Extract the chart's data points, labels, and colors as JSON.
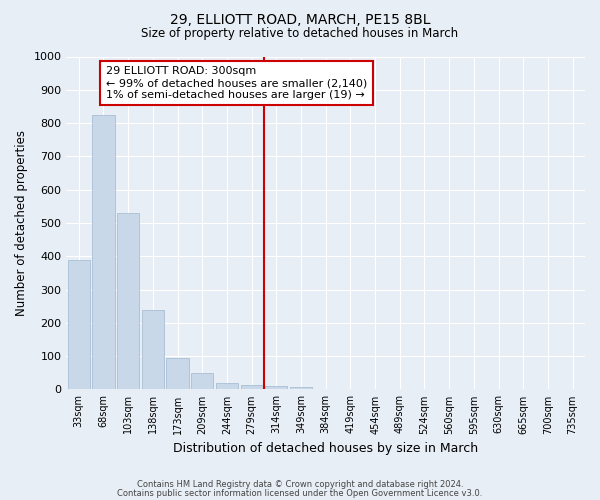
{
  "title1": "29, ELLIOTT ROAD, MARCH, PE15 8BL",
  "title2": "Size of property relative to detached houses in March",
  "xlabel": "Distribution of detached houses by size in March",
  "ylabel": "Number of detached properties",
  "bar_color": "#c8d8e8",
  "bar_edge_color": "#a0b8d0",
  "categories": [
    "33sqm",
    "68sqm",
    "103sqm",
    "138sqm",
    "173sqm",
    "209sqm",
    "244sqm",
    "279sqm",
    "314sqm",
    "349sqm",
    "384sqm",
    "419sqm",
    "454sqm",
    "489sqm",
    "524sqm",
    "560sqm",
    "595sqm",
    "630sqm",
    "665sqm",
    "700sqm",
    "735sqm"
  ],
  "values": [
    390,
    825,
    530,
    240,
    93,
    50,
    20,
    13,
    10,
    7,
    0,
    0,
    0,
    0,
    0,
    0,
    0,
    0,
    0,
    0,
    0
  ],
  "vline_x": 8,
  "vline_color": "#cc0000",
  "ylim": [
    0,
    1000
  ],
  "yticks": [
    0,
    100,
    200,
    300,
    400,
    500,
    600,
    700,
    800,
    900,
    1000
  ],
  "annotation_text": "29 ELLIOTT ROAD: 300sqm\n← 99% of detached houses are smaller (2,140)\n1% of semi-detached houses are larger (19) →",
  "annotation_box_color": "#ffffff",
  "annotation_box_edge_color": "#cc0000",
  "footer1": "Contains HM Land Registry data © Crown copyright and database right 2024.",
  "footer2": "Contains public sector information licensed under the Open Government Licence v3.0.",
  "background_color": "#e8eef5",
  "grid_color": "#ffffff",
  "fig_width": 6.0,
  "fig_height": 5.0
}
